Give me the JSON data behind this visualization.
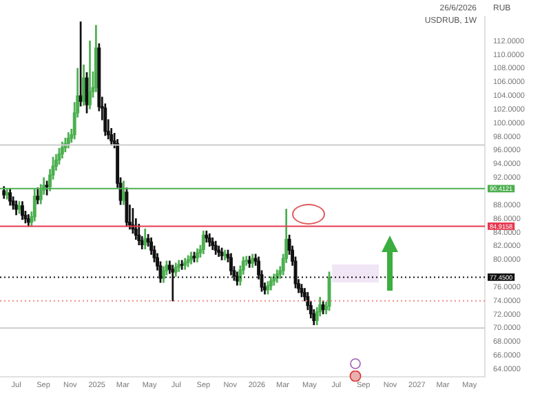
{
  "chart_data": {
    "type": "candlestick",
    "title": "USDRUB, 1W",
    "ylabel": "RUB",
    "annotations": [
      "26/6/2026"
    ],
    "colors": [
      "#111111",
      "#4caf50",
      "#111111",
      "#111111",
      "#111111",
      "#4caf50",
      "#111111",
      "#111111",
      "#111111",
      "#4caf50",
      "#4caf50",
      "#111111",
      "#4caf50",
      "#4caf50",
      "#111111",
      "#4caf50",
      "#4caf50",
      "#4caf50",
      "#4caf50",
      "#4caf50",
      "#4caf50",
      "#4caf50",
      "#4caf50",
      "#4caf50",
      "#4caf50",
      "#111111",
      "#4caf50",
      "#111111",
      "#4caf50",
      "#4caf50",
      "#4caf50",
      "#111111",
      "#111111",
      "#111111",
      "#111111",
      "#111111",
      "#111111",
      "#111111",
      "#111111",
      "#4caf50",
      "#111111",
      "#111111",
      "#111111",
      "#111111",
      "#111111",
      "#111111",
      "#4caf50",
      "#111111",
      "#111111",
      "#111111",
      "#111111",
      "#111111",
      "#4caf50",
      "#4caf50",
      "#111111",
      "#111111",
      "#4caf50",
      "#4caf50",
      "#111111",
      "#4caf50",
      "#4caf50",
      "#4caf50",
      "#111111",
      "#4caf50",
      "#4caf50",
      "#4caf50",
      "#111111",
      "#111111",
      "#111111",
      "#111111",
      "#111111",
      "#111111",
      "#4caf50",
      "#111111",
      "#111111",
      "#111111",
      "#111111",
      "#4caf50",
      "#4caf50",
      "#4caf50",
      "#111111",
      "#4caf50",
      "#111111",
      "#111111",
      "#111111",
      "#111111",
      "#4caf50",
      "#4caf50",
      "#4caf50",
      "#4caf50",
      "#4caf50",
      "#4caf50",
      "#4caf50",
      "#111111",
      "#111111",
      "#111111",
      "#111111",
      "#111111",
      "#111111",
      "#111111",
      "#111111",
      "#111111",
      "#4caf50",
      "#4caf50",
      "#111111",
      "#4caf50",
      "#4caf50"
    ],
    "x": [
      "2024-06-03",
      "2024-06-10",
      "2024-06-17",
      "2024-06-24",
      "2024-07-01",
      "2024-07-08",
      "2024-07-15",
      "2024-07-22",
      "2024-07-29",
      "2024-08-05",
      "2024-08-12",
      "2024-08-19",
      "2024-08-26",
      "2024-09-02",
      "2024-09-09",
      "2024-09-16",
      "2024-09-23",
      "2024-09-30",
      "2024-10-07",
      "2024-10-14",
      "2024-10-21",
      "2024-10-28",
      "2024-11-04",
      "2024-11-11",
      "2024-11-18",
      "2024-11-25",
      "2024-12-02",
      "2024-12-09",
      "2024-12-16",
      "2024-12-23",
      "2024-12-30",
      "2025-01-06",
      "2025-01-13",
      "2025-01-20",
      "2025-01-27",
      "2025-02-03",
      "2025-02-10",
      "2025-02-17",
      "2025-02-24",
      "2025-03-03",
      "2025-03-10",
      "2025-03-17",
      "2025-03-24",
      "2025-03-31",
      "2025-04-07",
      "2025-04-14",
      "2025-04-21",
      "2025-04-28",
      "2025-05-05",
      "2025-05-12",
      "2025-05-19",
      "2025-05-26",
      "2025-06-02",
      "2025-06-09",
      "2025-06-16",
      "2025-06-23",
      "2025-06-30",
      "2025-07-07",
      "2025-07-14",
      "2025-07-21",
      "2025-07-28",
      "2025-08-04",
      "2025-08-11",
      "2025-08-18",
      "2025-08-25",
      "2025-09-01",
      "2025-09-08",
      "2025-09-15",
      "2025-09-22",
      "2025-09-29",
      "2025-10-06",
      "2025-10-13",
      "2025-10-20",
      "2025-10-27",
      "2025-11-03",
      "2025-11-10",
      "2025-11-17",
      "2025-11-24",
      "2025-12-01",
      "2025-12-08",
      "2025-12-15",
      "2025-12-22",
      "2025-12-29",
      "2026-01-05",
      "2026-01-12",
      "2026-01-19",
      "2026-01-26",
      "2026-02-02",
      "2026-02-09",
      "2026-02-16",
      "2026-02-23",
      "2026-03-02",
      "2026-03-09",
      "2026-03-16",
      "2026-03-23",
      "2026-03-30",
      "2026-04-06",
      "2026-04-13",
      "2026-04-20",
      "2026-04-27",
      "2026-05-04",
      "2026-05-11",
      "2026-05-18",
      "2026-05-25",
      "2026-06-01",
      "2026-06-08",
      "2026-06-15"
    ],
    "ohlc": [
      [
        90.1,
        90.7,
        89.0,
        89.5
      ],
      [
        89.5,
        90.4,
        88.9,
        89.8
      ],
      [
        89.8,
        90.4,
        88.0,
        88.6
      ],
      [
        88.6,
        89.2,
        87.4,
        88
      ],
      [
        88,
        88.6,
        86.6,
        87.4
      ],
      [
        87.4,
        88.5,
        86.8,
        87.9
      ],
      [
        87.9,
        88.5,
        85.9,
        86.5
      ],
      [
        86.5,
        87.1,
        85.4,
        86
      ],
      [
        86,
        86.6,
        84.9,
        85.5
      ],
      [
        85.5,
        87,
        84.9,
        86.3
      ],
      [
        86.3,
        90.3,
        85.7,
        89.3
      ],
      [
        89.3,
        90.5,
        88.2,
        88.8
      ],
      [
        88.8,
        91,
        88.2,
        90.2
      ],
      [
        90.2,
        92,
        89.6,
        90.9
      ],
      [
        90.9,
        91.5,
        89.5,
        90.7
      ],
      [
        90.7,
        93.2,
        90.1,
        92.4
      ],
      [
        92.4,
        95,
        91.8,
        93.7
      ],
      [
        93.7,
        95.4,
        93.1,
        94.6
      ],
      [
        94.6,
        96.3,
        94,
        95.5
      ],
      [
        95.5,
        97.2,
        94.9,
        96.4
      ],
      [
        96.4,
        97.8,
        95.8,
        97
      ],
      [
        97,
        98.6,
        96.4,
        97.8
      ],
      [
        97.8,
        99.1,
        97.2,
        98.3
      ],
      [
        98.3,
        103,
        97.7,
        101.5
      ],
      [
        101.5,
        108,
        100.9,
        104
      ],
      [
        104,
        114.8,
        102.5,
        103.2
      ],
      [
        103.2,
        108.5,
        102.6,
        106.6
      ],
      [
        106.6,
        107.4,
        101.5,
        102.7
      ],
      [
        102.7,
        112,
        102.1,
        104.6
      ],
      [
        104.6,
        107.5,
        103.8,
        105.2
      ],
      [
        105.2,
        114.3,
        104.6,
        111
      ],
      [
        111,
        111.6,
        101.8,
        102.4
      ],
      [
        102.4,
        103.8,
        100.5,
        102.2
      ],
      [
        102.2,
        102.8,
        98.2,
        98.8
      ],
      [
        98.8,
        100.5,
        97.7,
        98.3
      ],
      [
        98.3,
        99.2,
        96.8,
        97.4
      ],
      [
        97.4,
        98.5,
        96.4,
        97
      ],
      [
        97,
        97.6,
        90.6,
        91.2
      ],
      [
        91.2,
        92,
        88.1,
        88.7
      ],
      [
        88.7,
        91.5,
        88.1,
        89.9
      ],
      [
        89.9,
        90.5,
        84.9,
        85.5
      ],
      [
        85.5,
        88,
        84.5,
        85.1
      ],
      [
        85.1,
        87.5,
        83.9,
        84.5
      ],
      [
        84.5,
        86,
        83,
        83.6
      ],
      [
        83.6,
        85.2,
        82.2,
        82.8
      ],
      [
        82.8,
        83.4,
        81.6,
        82.2
      ],
      [
        82.2,
        84.5,
        81.6,
        83.1
      ],
      [
        83.1,
        83.7,
        82,
        82.6
      ],
      [
        82.6,
        83.2,
        80.8,
        81.4
      ],
      [
        81.4,
        82,
        79.7,
        80.3
      ],
      [
        80.3,
        80.9,
        78.5,
        79.1
      ],
      [
        79.1,
        79.7,
        76.7,
        77.3
      ],
      [
        77.3,
        79,
        76.7,
        78.4
      ],
      [
        78.4,
        79.8,
        77.8,
        79.2
      ],
      [
        79.2,
        79.8,
        78,
        78.6
      ],
      [
        78.6,
        79.2,
        74,
        78.2
      ],
      [
        78.2,
        79.5,
        77.6,
        78.9
      ],
      [
        78.9,
        79.9,
        78.3,
        79.3
      ],
      [
        79.3,
        79.9,
        78.6,
        79.2
      ],
      [
        79.2,
        80.2,
        78.6,
        79.6
      ],
      [
        79.6,
        80.6,
        79,
        80
      ],
      [
        80,
        81.1,
        79.4,
        80.5
      ],
      [
        80.5,
        81.1,
        79.7,
        80.3
      ],
      [
        80.3,
        81.6,
        79.7,
        81
      ],
      [
        81,
        82.1,
        80.4,
        81.5
      ],
      [
        81.5,
        84.2,
        80.9,
        83.6
      ],
      [
        83.6,
        84.2,
        82.6,
        83.2
      ],
      [
        83.2,
        83.8,
        82,
        82.6
      ],
      [
        82.6,
        83.2,
        81.5,
        82.1
      ],
      [
        82.1,
        82.7,
        80.8,
        81.4
      ],
      [
        81.4,
        82,
        80.5,
        81.1
      ],
      [
        81.1,
        81.7,
        80,
        80.6
      ],
      [
        80.6,
        81.4,
        80,
        80.8
      ],
      [
        80.8,
        81.4,
        79.7,
        80.3
      ],
      [
        80.3,
        80.9,
        77.8,
        78.4
      ],
      [
        78.4,
        79,
        77,
        77.6
      ],
      [
        77.6,
        78.2,
        76.3,
        76.9
      ],
      [
        76.9,
        79.1,
        76.3,
        78.5
      ],
      [
        78.5,
        80.4,
        77.9,
        79.8
      ],
      [
        79.8,
        80.5,
        79.2,
        79.9
      ],
      [
        79.9,
        80.5,
        78.9,
        79.5
      ],
      [
        79.5,
        80.8,
        78.9,
        80.2
      ],
      [
        80.2,
        80.8,
        79.2,
        79.8
      ],
      [
        79.8,
        80.4,
        77.2,
        77.8
      ],
      [
        77.8,
        78.4,
        75.4,
        76
      ],
      [
        76,
        76.6,
        75,
        75.6
      ],
      [
        75.6,
        76.8,
        75,
        76.2
      ],
      [
        76.2,
        77.5,
        75.6,
        76.9
      ],
      [
        76.9,
        77.9,
        76.3,
        77.3
      ],
      [
        77.3,
        78.5,
        76.7,
        77.9
      ],
      [
        77.9,
        79,
        77.3,
        78.4
      ],
      [
        78.4,
        80.8,
        77.8,
        80.2
      ],
      [
        80.2,
        87.4,
        79.6,
        83
      ],
      [
        83,
        83.6,
        80.8,
        81.4
      ],
      [
        81.4,
        82,
        79.2,
        79.8
      ],
      [
        79.8,
        80.4,
        75.9,
        76.5
      ],
      [
        76.5,
        77.1,
        75.2,
        75.8
      ],
      [
        75.8,
        76.4,
        74.6,
        75.2
      ],
      [
        75.2,
        75.8,
        74,
        74.6
      ],
      [
        74.6,
        75.2,
        72.7,
        73.3
      ],
      [
        73.3,
        73.9,
        71.5,
        72.1
      ],
      [
        72.1,
        72.7,
        70.5,
        71.1
      ],
      [
        71.1,
        73,
        70.5,
        72.4
      ],
      [
        72.4,
        74.5,
        71.8,
        73.4
      ],
      [
        73.4,
        74,
        72.1,
        72.7
      ],
      [
        72.7,
        73.8,
        72.1,
        73.2
      ],
      [
        73.2,
        78.2,
        72.6,
        77.45
      ]
    ],
    "xlim": [
      "2024-05-25",
      "2027-06-05"
    ],
    "xticks": [
      {
        "value": "2024-07-01",
        "label": "Jul"
      },
      {
        "value": "2024-09-01",
        "label": "Sep"
      },
      {
        "value": "2024-11-01",
        "label": "Nov"
      },
      {
        "value": "2025-01-01",
        "label": "2025"
      },
      {
        "value": "2025-03-01",
        "label": "Mar"
      },
      {
        "value": "2025-05-01",
        "label": "May"
      },
      {
        "value": "2025-07-01",
        "label": "Jul"
      },
      {
        "value": "2025-09-01",
        "label": "Sep"
      },
      {
        "value": "2025-11-01",
        "label": "Nov"
      },
      {
        "value": "2026-01-01",
        "label": "2026"
      },
      {
        "value": "2026-03-01",
        "label": "Mar"
      },
      {
        "value": "2026-05-01",
        "label": "May"
      },
      {
        "value": "2026-07-01",
        "label": "Jul"
      },
      {
        "value": "2026-09-01",
        "label": "Sep"
      },
      {
        "value": "2026-11-01",
        "label": "Nov"
      },
      {
        "value": "2027-01-01",
        "label": "2027"
      },
      {
        "value": "2027-03-01",
        "label": "Mar"
      },
      {
        "value": "2027-05-01",
        "label": "May"
      }
    ],
    "ylim": [
      62.9,
      115.6
    ],
    "yticks": [
      {
        "value": 64,
        "label": "64.0000"
      },
      {
        "value": 66,
        "label": "66.0000"
      },
      {
        "value": 68,
        "label": "68.0000"
      },
      {
        "value": 70,
        "label": "70.0000"
      },
      {
        "value": 72,
        "label": "72.0000"
      },
      {
        "value": 74,
        "label": "74.0000"
      },
      {
        "value": 76,
        "label": "76.0000"
      },
      {
        "value": 80,
        "label": "80.0000"
      },
      {
        "value": 82,
        "label": "82.0000"
      },
      {
        "value": 84,
        "label": "84.0000"
      },
      {
        "value": 86,
        "label": "86.0000"
      },
      {
        "value": 88,
        "label": "88.0000"
      },
      {
        "value": 92,
        "label": "92.0000"
      },
      {
        "value": 94,
        "label": "94.0000"
      },
      {
        "value": 96,
        "label": "96.0000"
      },
      {
        "value": 98,
        "label": "98.0000"
      },
      {
        "value": 100,
        "label": "100.0000"
      },
      {
        "value": 102,
        "label": "102.0000"
      },
      {
        "value": 104,
        "label": "104.0000"
      },
      {
        "value": 106,
        "label": "106.0000"
      },
      {
        "value": 108,
        "label": "108.0000"
      },
      {
        "value": 110,
        "label": "110.0000"
      },
      {
        "value": 112,
        "label": "112.0000"
      }
    ],
    "ref_lines": [
      {
        "axis": "y",
        "value": 96.8,
        "color": "#cccccc"
      },
      {
        "axis": "y",
        "value": 90.4121,
        "label": "90.4121",
        "color": "#4caf50"
      },
      {
        "axis": "y",
        "value": 84.9158,
        "label": "84.9158",
        "color": "#e53950"
      },
      {
        "axis": "y",
        "value": 77.45,
        "label": "77.4500",
        "color": "#111111",
        "line_style": "dotted"
      },
      {
        "axis": "y",
        "value": 74,
        "color": "#f08a8a",
        "line_style": "dotted"
      },
      {
        "axis": "y",
        "value": 70,
        "color": "#cccccc"
      }
    ],
    "grid": false,
    "legend": false
  }
}
